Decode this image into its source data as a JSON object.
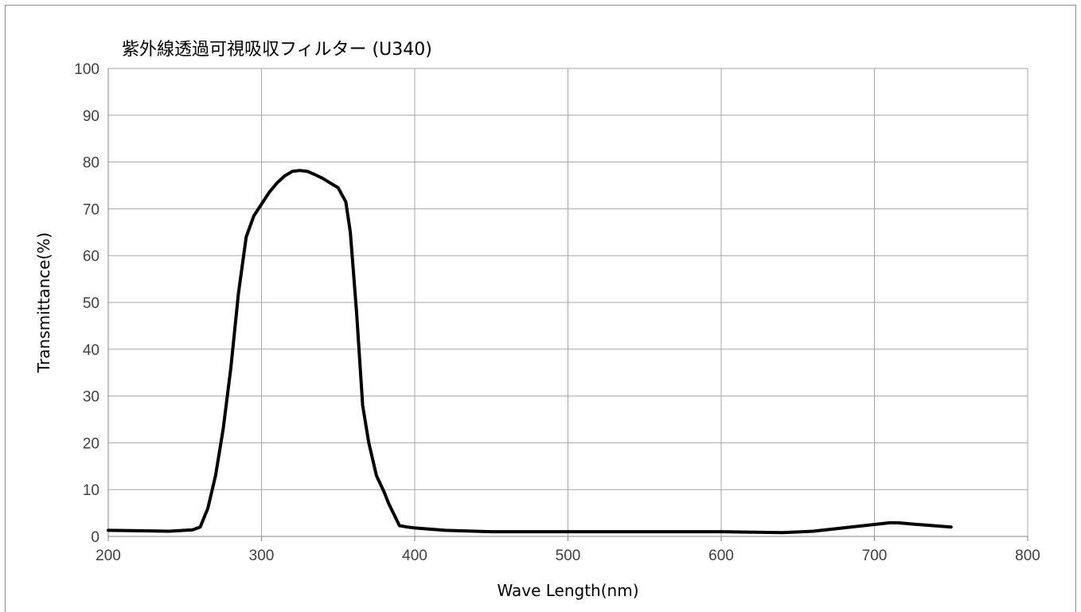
{
  "chart_data": {
    "type": "line",
    "title": "紫外線透過可視吸収フィルター  (U340)",
    "xlabel": "Wave Length(nm)",
    "ylabel": "Transmittance(%)",
    "xlim": [
      200,
      800
    ],
    "ylim": [
      0,
      100
    ],
    "x_ticks": [
      200,
      300,
      400,
      500,
      600,
      700,
      800
    ],
    "y_ticks": [
      0,
      10,
      20,
      30,
      40,
      50,
      60,
      70,
      80,
      90,
      100
    ],
    "grid": true,
    "legend": "none",
    "series": [
      {
        "color": "#000000",
        "x": [
          200,
          220,
          240,
          255,
          260,
          265,
          270,
          275,
          280,
          285,
          290,
          295,
          300,
          305,
          310,
          315,
          320,
          325,
          330,
          335,
          340,
          345,
          350,
          355,
          358,
          362,
          366,
          370,
          375,
          380,
          383,
          386,
          390,
          395,
          400,
          420,
          450,
          500,
          550,
          600,
          640,
          660,
          690,
          710,
          715,
          730,
          750
        ],
        "y": [
          1.3,
          1.2,
          1.1,
          1.4,
          2.0,
          6.0,
          13,
          23,
          36,
          52,
          64,
          68.5,
          71,
          73.5,
          75.5,
          77,
          78,
          78.2,
          78,
          77.3,
          76.5,
          75.5,
          74.5,
          71.5,
          65,
          48,
          28,
          20,
          13,
          9.5,
          7,
          5,
          2.3,
          2.0,
          1.8,
          1.3,
          1.0,
          1.0,
          1.0,
          1.0,
          0.8,
          1.1,
          2.2,
          2.9,
          2.9,
          2.5,
          2.0
        ]
      }
    ]
  }
}
